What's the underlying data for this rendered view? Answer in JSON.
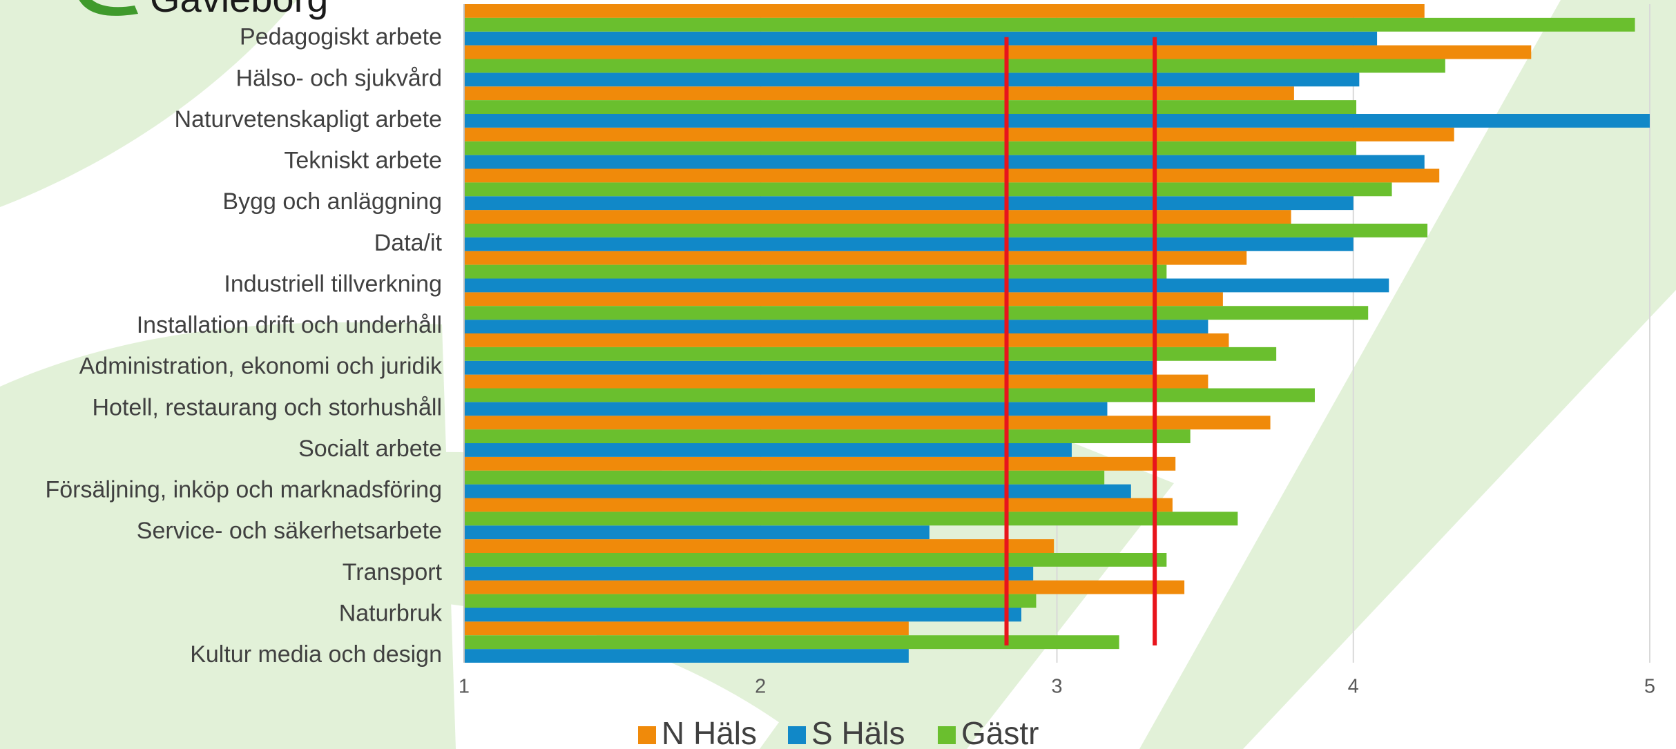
{
  "logo_text": "Gävleborg",
  "chart_data": {
    "type": "bar",
    "orientation": "horizontal",
    "categories": [
      "Pedagogiskt arbete",
      "Hälso- och sjukvård",
      "Naturvetenskapligt arbete",
      "Tekniskt arbete",
      "Bygg och anläggning",
      "Data/it",
      "Industriell tillverkning",
      "Installation drift och underhåll",
      "Administration, ekonomi och juridik",
      "Hotell, restaurang och storhushåll",
      "Socialt arbete",
      "Försäljning, inköp och marknadsföring",
      "Service- och säkerhetsarbete",
      "Transport",
      "Naturbruk",
      "Kultur media och design"
    ],
    "series": [
      {
        "name": "N Häls",
        "color": "#f08a0a",
        "values": [
          4.24,
          4.6,
          3.8,
          4.34,
          4.29,
          3.79,
          3.64,
          3.56,
          3.58,
          3.51,
          3.72,
          3.4,
          3.39,
          2.99,
          3.43,
          2.5
        ]
      },
      {
        "name": "S Häls",
        "color": "#1188c8",
        "values": [
          4.08,
          4.02,
          5.0,
          4.24,
          4.0,
          4.0,
          4.12,
          3.51,
          3.33,
          3.17,
          3.05,
          3.25,
          2.57,
          2.92,
          2.88,
          2.5
        ]
      },
      {
        "name": "Gästr",
        "color": "#6abf2e",
        "values": [
          4.95,
          4.31,
          4.01,
          4.01,
          4.13,
          4.25,
          3.37,
          4.05,
          3.74,
          3.87,
          3.45,
          3.16,
          3.61,
          3.37,
          2.93,
          3.21
        ]
      }
    ],
    "xlim": [
      1,
      5
    ],
    "xticks": [
      1,
      2,
      3,
      4,
      5
    ],
    "grid": true,
    "reference_lines": [
      2.83,
      3.33
    ],
    "reference_color": "#e8141c",
    "legend": "bottom"
  }
}
